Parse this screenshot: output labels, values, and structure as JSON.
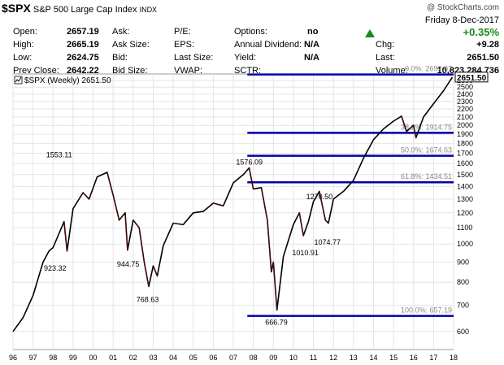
{
  "header": {
    "symbol": "$SPX",
    "name": "S&P 500 Large Cap Index",
    "exchange": "INDX",
    "source": "@ StockCharts.com",
    "date": "Friday  8-Dec-2017"
  },
  "quote": {
    "col1": [
      {
        "label": "Open:",
        "value": "2657.19"
      },
      {
        "label": "High:",
        "value": "2665.19"
      },
      {
        "label": "Low:",
        "value": "2624.75"
      },
      {
        "label": "Prev Close:",
        "value": "2642.22"
      }
    ],
    "col2": [
      "Ask:",
      "Ask Size:",
      "Bid:",
      "Bid Size:"
    ],
    "col3": [
      "P/E:",
      "EPS:",
      "Last Size:",
      "VWAP:"
    ],
    "col4": [
      {
        "label": "Options:",
        "value": "no"
      },
      {
        "label": "Annual Dividend:",
        "value": "N/A"
      },
      {
        "label": "Yield:",
        "value": "N/A"
      },
      {
        "label": "SCTR:",
        "value": ""
      }
    ],
    "change_pct": "+0.35%",
    "col5": [
      {
        "label": "Chg:",
        "value": "+9.28"
      },
      {
        "label": "Last:",
        "value": "2651.50"
      },
      {
        "label": "Volume:",
        "value": "10,823,284,736"
      }
    ]
  },
  "chart_data": {
    "type": "line",
    "legend": "$SPX (Weekly) 2651.50",
    "last_label": "2651.50",
    "x_tick_labels": [
      "96",
      "97",
      "98",
      "99",
      "00",
      "01",
      "02",
      "03",
      "04",
      "05",
      "06",
      "07",
      "08",
      "09",
      "10",
      "11",
      "12",
      "13",
      "14",
      "15",
      "16",
      "17",
      "18"
    ],
    "y_ticks": [
      600,
      700,
      800,
      900,
      1000,
      1100,
      1200,
      1300,
      1400,
      1500,
      1600,
      1700,
      1800,
      1900,
      2000,
      2100,
      2200,
      2300,
      2400,
      2500,
      2600
    ],
    "ylim": [
      540,
      2700
    ],
    "xlim": [
      1996.0,
      2018.0
    ],
    "scale": "log",
    "series": [
      {
        "x": [
          1996.0,
          1996.5,
          1997.0,
          1997.5,
          1997.8,
          1998.0,
          1998.55,
          1998.7,
          1999.0,
          1999.5,
          1999.8,
          2000.2,
          2000.7,
          2001.0,
          2001.3,
          2001.6,
          2001.72,
          2002.0,
          2002.3,
          2002.55,
          2002.78,
          2003.0,
          2003.2,
          2003.5,
          2004.0,
          2004.5,
          2005.0,
          2005.5,
          2006.0,
          2006.5,
          2007.0,
          2007.5,
          2007.79,
          2008.0,
          2008.4,
          2008.7,
          2008.9,
          2009.0,
          2009.18,
          2009.5,
          2010.0,
          2010.3,
          2010.5,
          2010.75,
          2011.0,
          2011.3,
          2011.6,
          2011.75,
          2012.0,
          2012.5,
          2013.0,
          2013.5,
          2014.0,
          2014.5,
          2015.0,
          2015.4,
          2015.65,
          2016.0,
          2016.12,
          2016.5,
          2017.0,
          2017.5,
          2017.94
        ],
        "y": [
          600,
          650,
          740,
          900,
          960,
          980,
          1140,
          960,
          1230,
          1350,
          1300,
          1480,
          1520,
          1330,
          1150,
          1200,
          965,
          1150,
          1100,
          900,
          780,
          880,
          830,
          990,
          1130,
          1120,
          1200,
          1210,
          1270,
          1250,
          1430,
          1500,
          1560,
          1380,
          1390,
          1150,
          850,
          900,
          680,
          930,
          1120,
          1200,
          1050,
          1140,
          1280,
          1360,
          1150,
          1130,
          1300,
          1360,
          1450,
          1650,
          1840,
          1960,
          2050,
          2110,
          1930,
          2000,
          1860,
          2100,
          2270,
          2450,
          2651.5
        ]
      }
    ],
    "annotations": [
      "1553.11",
      "923.32",
      "944.75",
      "768.63",
      "1576.09",
      "666.79",
      "1010.91",
      "1074.77",
      "1270.50"
    ],
    "fib_levels": [
      {
        "label": "0.0%: 2692.07",
        "value": 2692.07
      },
      {
        "label": "38.2%: 1914.75",
        "value": 1914.75
      },
      {
        "label": "50.0%: 1674.63",
        "value": 1674.63
      },
      {
        "label": "61.8%: 1434.51",
        "value": 1434.51
      },
      {
        "label": "100.0%: 657.19",
        "value": 657.19
      }
    ],
    "line_color": "#000000",
    "down_color": "#cc0000",
    "fib_color": "#0000aa",
    "grid": true
  }
}
